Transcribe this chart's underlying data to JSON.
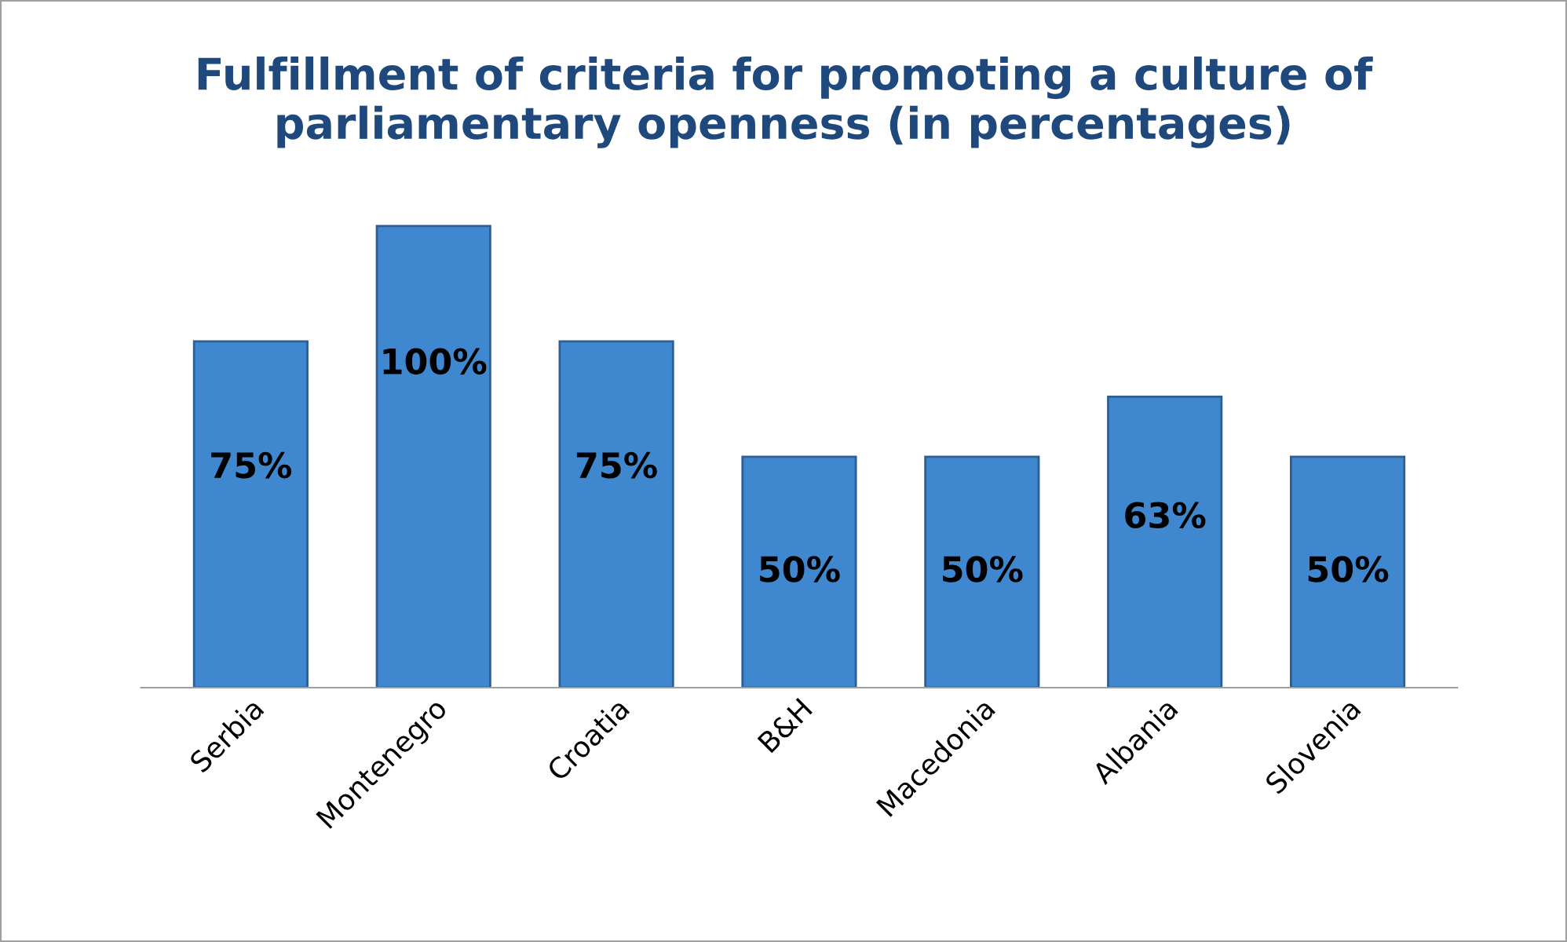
{
  "chart_data": {
    "type": "bar",
    "title": "Fulfillment of criteria for promoting a culture of\nparliamentary openness (in percentages)",
    "categories": [
      "Serbia",
      "Montenegro",
      "Croatia",
      "B&H",
      "Macedonia",
      "Albania",
      "Slovenia"
    ],
    "values": [
      75,
      100,
      75,
      50,
      50,
      63,
      50
    ],
    "value_labels": [
      "75%",
      "100%",
      "75%",
      "50%",
      "50%",
      "63%",
      "50%"
    ],
    "color": "#3f87cf",
    "grid": false,
    "legend": false
  }
}
